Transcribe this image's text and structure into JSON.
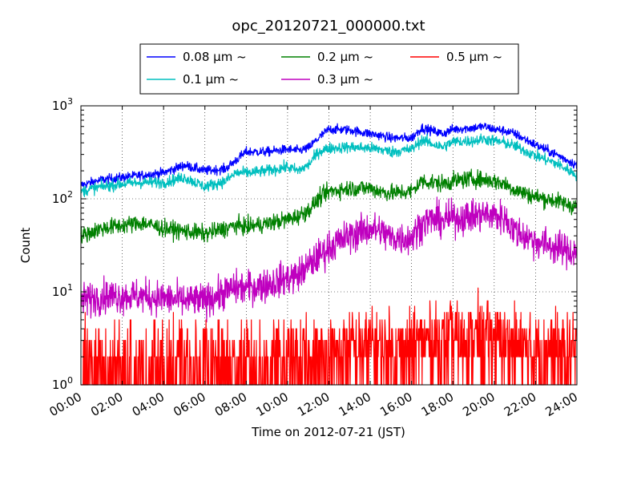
{
  "chart_data": {
    "type": "line",
    "title": "opc_20120721_000000.txt",
    "xlabel": "Time on 2012-07-21 (JST)",
    "ylabel": "Count",
    "x_ticks": [
      "00:00",
      "02:00",
      "04:00",
      "06:00",
      "08:00",
      "10:00",
      "12:00",
      "14:00",
      "16:00",
      "18:00",
      "20:00",
      "22:00",
      "24:00"
    ],
    "x_range_hours": [
      0,
      24
    ],
    "y_scale": "log",
    "y_ticks": [
      {
        "base": "10",
        "exp": "0"
      },
      {
        "base": "10",
        "exp": "1"
      },
      {
        "base": "10",
        "exp": "2"
      },
      {
        "base": "10",
        "exp": "3"
      }
    ],
    "ylim": [
      1,
      1000
    ],
    "grid": true,
    "legend_position": "top",
    "series": [
      {
        "name": "0.08 μm ~",
        "color": "#0000ff",
        "x": [
          0,
          1,
          2,
          3,
          4,
          5,
          6,
          7,
          7.5,
          8,
          9,
          10,
          10.5,
          11,
          11.5,
          12,
          13,
          14,
          14.5,
          15,
          16,
          16.5,
          17,
          17.5,
          18,
          19,
          19.5,
          20,
          20.5,
          21,
          22,
          23,
          24
        ],
        "y": [
          140,
          160,
          170,
          180,
          190,
          230,
          200,
          210,
          260,
          320,
          320,
          340,
          330,
          350,
          450,
          560,
          550,
          500,
          480,
          450,
          450,
          580,
          540,
          500,
          560,
          580,
          600,
          560,
          540,
          500,
          380,
          300,
          230
        ]
      },
      {
        "name": "0.1 μm ~",
        "color": "#00bfbf",
        "x": [
          0,
          1,
          2,
          3,
          4,
          5,
          6,
          7,
          7.5,
          8,
          9,
          10,
          10.5,
          11,
          11.5,
          12,
          13,
          14,
          14.5,
          15,
          16,
          16.5,
          17,
          17.5,
          18,
          19,
          19.5,
          20,
          20.5,
          21,
          22,
          23,
          24
        ],
        "y": [
          120,
          135,
          145,
          150,
          150,
          170,
          135,
          155,
          190,
          190,
          200,
          220,
          200,
          230,
          320,
          350,
          360,
          350,
          340,
          320,
          340,
          430,
          390,
          360,
          410,
          420,
          440,
          420,
          400,
          370,
          290,
          240,
          180
        ]
      },
      {
        "name": "0.2 μm ~",
        "color": "#008000",
        "x": [
          0,
          1,
          2,
          3,
          4,
          5,
          6,
          7,
          7.5,
          8,
          9,
          10,
          10.5,
          11,
          11.5,
          12,
          13,
          14,
          14.5,
          15,
          16,
          16.5,
          17,
          17.5,
          18,
          19,
          19.5,
          20,
          20.5,
          21,
          22,
          23,
          24
        ],
        "y": [
          40,
          48,
          52,
          55,
          48,
          45,
          42,
          48,
          52,
          50,
          54,
          60,
          65,
          75,
          100,
          120,
          130,
          130,
          120,
          115,
          120,
          155,
          150,
          145,
          155,
          165,
          160,
          155,
          145,
          125,
          105,
          95,
          82
        ]
      },
      {
        "name": "0.3 μm ~",
        "color": "#bf00bf",
        "x": [
          0,
          1,
          2,
          3,
          4,
          5,
          6,
          7,
          7.5,
          8,
          9,
          10,
          10.5,
          11,
          11.5,
          12,
          13,
          14,
          14.5,
          15,
          16,
          16.5,
          17,
          17.5,
          18,
          19,
          19.5,
          20,
          20.5,
          21,
          22,
          23,
          24
        ],
        "y": [
          8,
          9,
          9,
          9,
          8.5,
          8,
          8,
          10,
          11,
          11,
          12,
          14,
          15,
          19,
          24,
          30,
          40,
          48,
          45,
          38,
          38,
          55,
          60,
          58,
          62,
          65,
          68,
          66,
          62,
          45,
          35,
          30,
          26
        ]
      },
      {
        "name": "0.5 μm ~",
        "color": "#ff0000",
        "x": [
          0,
          1,
          2,
          3,
          4,
          5,
          6,
          7,
          7.5,
          8,
          9,
          10,
          10.5,
          11,
          11.5,
          12,
          13,
          14,
          14.5,
          15,
          16,
          16.5,
          17,
          17.5,
          18,
          19,
          19.5,
          20,
          20.5,
          21,
          22,
          23,
          24
        ],
        "y": [
          1.5,
          1.5,
          1.5,
          1.5,
          1.5,
          1.5,
          1.5,
          1.6,
          1.7,
          1.7,
          1.7,
          1.8,
          1.8,
          1.9,
          2,
          2.2,
          2.5,
          2.8,
          2.7,
          2.5,
          2.5,
          3,
          3.2,
          3,
          3.2,
          3.4,
          3.5,
          3.4,
          3.2,
          2.8,
          2.5,
          2.3,
          2.2
        ]
      }
    ]
  }
}
